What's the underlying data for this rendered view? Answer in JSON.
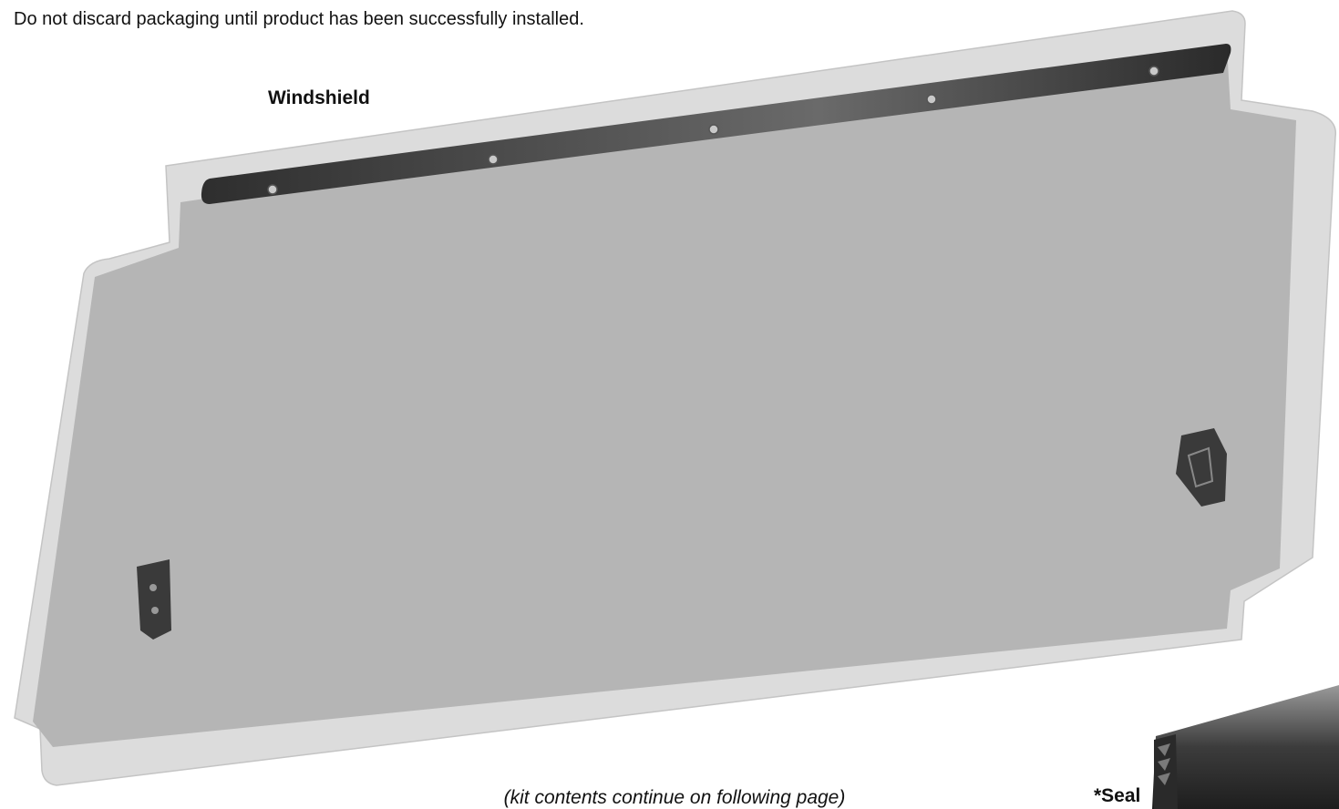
{
  "notice": "Do not discard packaging until product has been successfully installed.",
  "labels": {
    "windshield": "Windshield",
    "seal": "*Seal"
  },
  "footer": "(kit contents continue on following page)"
}
